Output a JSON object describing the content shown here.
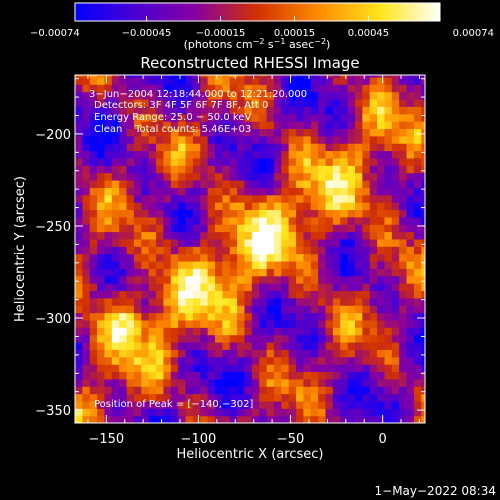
{
  "colorbar": {
    "min": -0.00074,
    "max": 0.00074,
    "tick_labels": [
      "−0.00074",
      "−0.00045",
      "−0.00015",
      "0.00015",
      "0.00045",
      "0.00074"
    ],
    "tick_values": [
      -0.00074,
      -0.00045,
      -0.00015,
      0.00015,
      0.00045,
      0.00074
    ],
    "units_main": "(photons cm",
    "units_exp1": "−2",
    "units_mid1": " s",
    "units_exp2": "−1",
    "units_mid2": " asec",
    "units_exp3": "−2",
    "units_end": ")",
    "colormap": [
      "#0000ff",
      "#4b00d2",
      "#8700a0",
      "#d23200",
      "#ff8c00",
      "#ffe61e",
      "#ffffff"
    ]
  },
  "chart_data": {
    "type": "heatmap",
    "title": "Reconstructed RHESSI Image",
    "xlabel": "Heliocentric X (arcsec)",
    "ylabel": "Heliocentric Y (arcsec)",
    "xlim": [
      -167,
      23
    ],
    "ylim": [
      -357,
      -168
    ],
    "x_ticks": [
      -150,
      -100,
      -50,
      0
    ],
    "y_ticks": [
      -200,
      -250,
      -300,
      -350
    ],
    "x_tick_labels": [
      "−150",
      "−100",
      "−50",
      "0"
    ],
    "y_tick_labels": [
      "−200",
      "−250",
      "−300",
      "−350"
    ],
    "pixel_size_arcsec": 4,
    "annotation_lines": [
      "3−Jun−2004 12:18:44.000 to 12:21:20.000",
      "Detectors: 3F 4F 5F 6F 7F 8F, Att 0",
      "Energy Range: 25.0 − 50.0 keV",
      "Clean    Total counts: 5.46E+03"
    ],
    "peak_label": "Position of Peak = [−140,−302]",
    "peak": [
      -140,
      -302
    ]
  },
  "footer": {
    "timestamp": "1−May−2022 08:34"
  }
}
